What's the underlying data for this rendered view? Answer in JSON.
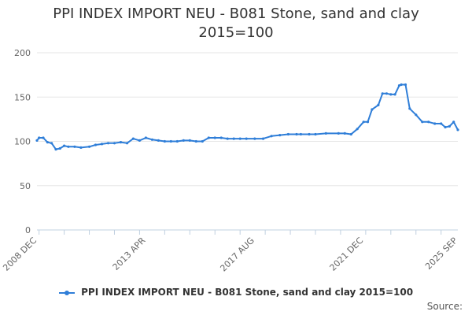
{
  "chart_data": {
    "type": "line",
    "title_line1": "PPI INDEX IMPORT NEU - B081 Stone, sand and clay",
    "title_line2": "2015=100",
    "xlabel": "",
    "ylabel": "",
    "ylim": [
      0,
      200
    ],
    "yticks": [
      "0",
      "50",
      "100",
      "150",
      "200"
    ],
    "xticks": [
      "2008 DEC",
      "2013 APR",
      "2017 AUG",
      "2021 DEC",
      "2025 SEP"
    ],
    "xlim": [
      "2008-12",
      "2025-09"
    ],
    "grid": true,
    "legend_position": "bottom",
    "color": "#2f7ed8",
    "source_label": "Source:",
    "series": [
      {
        "name": "PPI INDEX IMPORT NEU - B081 Stone, sand and clay 2015=100",
        "x": [
          "2008-12",
          "2009-01",
          "2009-03",
          "2009-05",
          "2009-07",
          "2009-09",
          "2009-11",
          "2010-01",
          "2010-03",
          "2010-06",
          "2010-09",
          "2011-01",
          "2011-04",
          "2011-07",
          "2011-10",
          "2012-01",
          "2012-04",
          "2012-07",
          "2012-10",
          "2013-01",
          "2013-04",
          "2013-07",
          "2013-10",
          "2014-01",
          "2014-04",
          "2014-07",
          "2014-10",
          "2015-01",
          "2015-04",
          "2015-07",
          "2015-10",
          "2016-01",
          "2016-04",
          "2016-07",
          "2016-10",
          "2017-01",
          "2017-04",
          "2017-08",
          "2017-12",
          "2018-04",
          "2018-08",
          "2018-12",
          "2019-04",
          "2019-06",
          "2019-10",
          "2020-01",
          "2020-06",
          "2020-12",
          "2021-03",
          "2021-06",
          "2021-09",
          "2021-12",
          "2022-02",
          "2022-04",
          "2022-07",
          "2022-09",
          "2022-11",
          "2023-01",
          "2023-03",
          "2023-05",
          "2023-06",
          "2023-08",
          "2023-10",
          "2024-01",
          "2024-04",
          "2024-07",
          "2024-10",
          "2025-01",
          "2025-03",
          "2025-05",
          "2025-07",
          "2025-09"
        ],
        "values": [
          101,
          104,
          104,
          99,
          98,
          91,
          92,
          95,
          94,
          94,
          93,
          94,
          96,
          97,
          98,
          98,
          99,
          98,
          103,
          101,
          104,
          102,
          101,
          100,
          100,
          100,
          101,
          101,
          100,
          100,
          104,
          104,
          104,
          103,
          103,
          103,
          103,
          103,
          103,
          106,
          107,
          108,
          108,
          108,
          108,
          108,
          109,
          109,
          109,
          108,
          114,
          122,
          122,
          136,
          141,
          154,
          154,
          153,
          153,
          163,
          164,
          164,
          137,
          130,
          122,
          122,
          120,
          120,
          116,
          117,
          122,
          113
        ]
      }
    ]
  }
}
